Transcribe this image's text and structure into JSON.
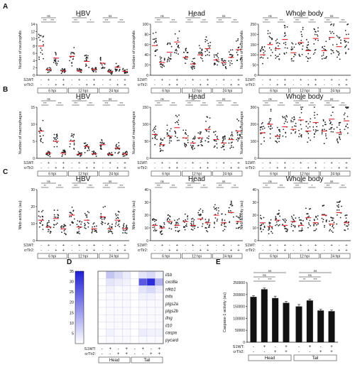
{
  "figure": {
    "factor_labels": [
      "S1WT:",
      "crTlr2:"
    ],
    "s1wt": [
      "-",
      "+",
      "-",
      "+"
    ],
    "crtlr2": [
      "-",
      "-",
      "+",
      "+"
    ],
    "timepoints": [
      "6 hpi",
      "12 hpi",
      "24 hpi"
    ],
    "colors": {
      "dot": "#222222",
      "mean": "#e0202a",
      "bar": "#111111",
      "heat_low": "#ffffff",
      "heat_high": "#1f1fd6"
    }
  },
  "chart_data": [
    {
      "id": "A1",
      "panel": "A",
      "type": "scatter",
      "title": "HBV",
      "ylabel": "Number of neutrophils",
      "ylim": [
        0,
        14
      ],
      "yticks": [
        0,
        2,
        4,
        6,
        8,
        10,
        12,
        14
      ],
      "groups": [
        "6 hpi",
        "12 hpi",
        "24 hpi"
      ],
      "means": [
        [
          8,
          1.5,
          4.7,
          1.2
        ],
        [
          5.2,
          1.2,
          3.8,
          1.6
        ],
        [
          3.3,
          1.0,
          2.2,
          1.1
        ]
      ],
      "sig": [
        [
          {
            "a": 0,
            "b": 1,
            "l": "***",
            "r": 0
          },
          {
            "a": 1,
            "b": 2,
            "l": "***",
            "r": 0
          },
          {
            "a": 0,
            "b": 2,
            "l": "ns",
            "r": 1
          }
        ],
        [
          {
            "a": 0,
            "b": 1,
            "l": "***",
            "r": 0
          },
          {
            "a": 2,
            "b": 3,
            "l": "*",
            "r": 0
          },
          {
            "a": 0,
            "b": 2,
            "l": "ns",
            "r": 1
          }
        ],
        [
          {
            "a": 0,
            "b": 1,
            "l": "***",
            "r": 0
          },
          {
            "a": 2,
            "b": 3,
            "l": "***",
            "r": 0
          },
          {
            "a": 0,
            "b": 2,
            "l": "ns",
            "r": 1
          }
        ]
      ]
    },
    {
      "id": "A2",
      "panel": "A",
      "type": "scatter",
      "title": "Head",
      "ylabel": "Number of neutrophils",
      "ylim": [
        0,
        100
      ],
      "yticks": [
        0,
        20,
        40,
        60,
        80,
        100
      ],
      "groups": [
        "6 hpi",
        "12 hpi",
        "24 hpi"
      ],
      "means": [
        [
          58,
          25,
          45,
          65
        ],
        [
          35,
          22,
          40,
          52
        ],
        [
          30,
          25,
          35,
          50
        ]
      ],
      "sig": [
        [
          {
            "a": 0,
            "b": 1,
            "l": "***",
            "r": 0
          },
          {
            "a": 2,
            "b": 3,
            "l": "***",
            "r": 0
          },
          {
            "a": 0,
            "b": 2,
            "l": "ns",
            "r": 1
          }
        ],
        [
          {
            "a": 0,
            "b": 1,
            "l": "***",
            "r": 0
          },
          {
            "a": 2,
            "b": 3,
            "l": "***",
            "r": 0
          },
          {
            "a": 0,
            "b": 2,
            "l": "ns",
            "r": 1
          }
        ],
        [
          {
            "a": 0,
            "b": 1,
            "l": "***",
            "r": 0
          },
          {
            "a": 2,
            "b": 3,
            "l": "***",
            "r": 0
          },
          {
            "a": 0,
            "b": 2,
            "l": "ns",
            "r": 1
          }
        ]
      ]
    },
    {
      "id": "A3",
      "panel": "A",
      "type": "scatter",
      "title": "Whole body",
      "ylabel": "Number of neutrophils",
      "ylim": [
        0,
        250
      ],
      "yticks": [
        0,
        50,
        100,
        150,
        200,
        250
      ],
      "groups": [
        "6 hpi",
        "12 hpi",
        "24 hpi"
      ],
      "means": [
        [
          100,
          150,
          130,
          175
        ],
        [
          110,
          160,
          120,
          180
        ],
        [
          120,
          185,
          140,
          180
        ]
      ],
      "sig": [
        [
          {
            "a": 0,
            "b": 1,
            "l": "***",
            "r": 0
          },
          {
            "a": 2,
            "b": 3,
            "l": "***",
            "r": 0
          },
          {
            "a": 0,
            "b": 2,
            "l": "ns",
            "r": 1
          }
        ],
        [
          {
            "a": 0,
            "b": 1,
            "l": "***",
            "r": 0
          },
          {
            "a": 2,
            "b": 3,
            "l": "***",
            "r": 0
          },
          {
            "a": 0,
            "b": 2,
            "l": "ns",
            "r": 1
          }
        ],
        [
          {
            "a": 0,
            "b": 1,
            "l": "***",
            "r": 0
          },
          {
            "a": 2,
            "b": 3,
            "l": "***",
            "r": 0
          },
          {
            "a": 0,
            "b": 2,
            "l": "ns",
            "r": 1
          }
        ]
      ]
    },
    {
      "id": "B1",
      "panel": "B",
      "type": "scatter",
      "title": "HBV",
      "ylabel": "Number of macrophages",
      "ylim": [
        0,
        15
      ],
      "yticks": [
        0,
        5,
        10,
        15
      ],
      "groups": [
        "6 hpi",
        "12 hpi",
        "24 hpi"
      ],
      "means": [
        [
          8,
          1.5,
          5,
          1.5
        ],
        [
          5,
          1.2,
          3.5,
          1.3
        ],
        [
          4,
          1.2,
          3,
          1.3
        ]
      ],
      "sig": [
        [
          {
            "a": 0,
            "b": 1,
            "l": "***",
            "r": 0
          },
          {
            "a": 2,
            "b": 3,
            "l": "***",
            "r": 0
          },
          {
            "a": 0,
            "b": 2,
            "l": "ns",
            "r": 1
          }
        ],
        [
          {
            "a": 0,
            "b": 1,
            "l": "***",
            "r": 0
          },
          {
            "a": 2,
            "b": 3,
            "l": "***",
            "r": 0
          },
          {
            "a": 0,
            "b": 2,
            "l": "ns",
            "r": 1
          }
        ],
        [
          {
            "a": 0,
            "b": 1,
            "l": "***",
            "r": 0
          },
          {
            "a": 2,
            "b": 3,
            "l": "***",
            "r": 0
          },
          {
            "a": 0,
            "b": 2,
            "l": "ns",
            "r": 1
          }
        ]
      ]
    },
    {
      "id": "B2",
      "panel": "B",
      "type": "scatter",
      "title": "Head",
      "ylabel": "Number of macrophages",
      "ylim": [
        0,
        150
      ],
      "yticks": [
        0,
        50,
        100,
        150
      ],
      "groups": [
        "6 hpi",
        "12 hpi",
        "24 hpi"
      ],
      "means": [
        [
          70,
          40,
          65,
          90
        ],
        [
          60,
          45,
          60,
          85
        ],
        [
          55,
          45,
          55,
          80
        ]
      ],
      "sig": [
        [
          {
            "a": 0,
            "b": 1,
            "l": "***",
            "r": 0
          },
          {
            "a": 2,
            "b": 3,
            "l": "***",
            "r": 0
          },
          {
            "a": 0,
            "b": 2,
            "l": "ns",
            "r": 1
          }
        ],
        [
          {
            "a": 0,
            "b": 1,
            "l": "***",
            "r": 0
          },
          {
            "a": 2,
            "b": 3,
            "l": "***",
            "r": 0
          },
          {
            "a": 0,
            "b": 2,
            "l": "ns",
            "r": 1
          }
        ],
        [
          {
            "a": 0,
            "b": 1,
            "l": "***",
            "r": 0
          },
          {
            "a": 2,
            "b": 3,
            "l": "***",
            "r": 0
          },
          {
            "a": 0,
            "b": 2,
            "l": "ns",
            "r": 1
          }
        ]
      ]
    },
    {
      "id": "B3",
      "panel": "B",
      "type": "scatter",
      "title": "Whole body",
      "ylabel": "Number of macrophages",
      "ylim": [
        0,
        300
      ],
      "yticks": [
        0,
        100,
        200,
        300
      ],
      "groups": [
        "6 hpi",
        "12 hpi",
        "24 hpi"
      ],
      "means": [
        [
          150,
          200,
          130,
          185
        ],
        [
          170,
          225,
          160,
          210
        ],
        [
          160,
          230,
          150,
          220
        ]
      ],
      "sig": [
        [
          {
            "a": 0,
            "b": 1,
            "l": "***",
            "r": 0
          },
          {
            "a": 2,
            "b": 3,
            "l": "***",
            "r": 0
          },
          {
            "a": 0,
            "b": 2,
            "l": "ns",
            "r": 1
          }
        ],
        [
          {
            "a": 0,
            "b": 1,
            "l": "***",
            "r": 0
          },
          {
            "a": 2,
            "b": 3,
            "l": "***",
            "r": 0
          },
          {
            "a": 0,
            "b": 2,
            "l": "ns",
            "r": 1
          }
        ],
        [
          {
            "a": 0,
            "b": 1,
            "l": "***",
            "r": 0
          },
          {
            "a": 2,
            "b": 3,
            "l": "***",
            "r": 0
          },
          {
            "a": 0,
            "b": 2,
            "l": "ns",
            "r": 1
          }
        ]
      ]
    },
    {
      "id": "C1",
      "panel": "C",
      "type": "scatter",
      "title": "HBV",
      "ylabel": "Nfκb activity (au)",
      "ylim": [
        0,
        30
      ],
      "yticks": [
        0,
        10,
        20,
        30
      ],
      "groups": [
        "6 hpi",
        "12 hpi",
        "24 hpi"
      ],
      "means": [
        [
          12,
          8,
          13,
          7
        ],
        [
          15,
          8,
          12,
          7
        ],
        [
          14,
          7,
          12,
          7
        ]
      ],
      "sig": [
        [
          {
            "a": 0,
            "b": 1,
            "l": "**",
            "r": 0
          },
          {
            "a": 2,
            "b": 3,
            "l": "***",
            "r": 0
          },
          {
            "a": 0,
            "b": 2,
            "l": "ns",
            "r": 1
          }
        ],
        [
          {
            "a": 0,
            "b": 1,
            "l": "***",
            "r": 0
          },
          {
            "a": 2,
            "b": 3,
            "l": "***",
            "r": 0
          },
          {
            "a": 0,
            "b": 2,
            "l": "ns",
            "r": 1
          }
        ],
        [
          {
            "a": 0,
            "b": 1,
            "l": "***",
            "r": 0
          },
          {
            "a": 2,
            "b": 3,
            "l": "***",
            "r": 0
          },
          {
            "a": 0,
            "b": 2,
            "l": "ns",
            "r": 1
          }
        ]
      ]
    },
    {
      "id": "C2",
      "panel": "C",
      "type": "scatter",
      "title": "Head",
      "ylabel": "Nfκb activity (au)",
      "ylim": [
        0,
        40
      ],
      "yticks": [
        0,
        10,
        20,
        30,
        40
      ],
      "groups": [
        "6 hpi",
        "12 hpi",
        "24 hpi"
      ],
      "means": [
        [
          12,
          10,
          15,
          12
        ],
        [
          15,
          12,
          17,
          14
        ],
        [
          20,
          14,
          22,
          15
        ]
      ],
      "sig": [
        [
          {
            "a": 0,
            "b": 1,
            "l": "***",
            "r": 0
          },
          {
            "a": 2,
            "b": 3,
            "l": "***",
            "r": 0
          },
          {
            "a": 0,
            "b": 2,
            "l": "ns",
            "r": 1
          }
        ],
        [
          {
            "a": 0,
            "b": 1,
            "l": "***",
            "r": 0
          },
          {
            "a": 2,
            "b": 3,
            "l": "**",
            "r": 0
          },
          {
            "a": 0,
            "b": 2,
            "l": "ns",
            "r": 1
          }
        ],
        [
          {
            "a": 0,
            "b": 1,
            "l": "***",
            "r": 0
          },
          {
            "a": 2,
            "b": 3,
            "l": "**",
            "r": 0
          },
          {
            "a": 0,
            "b": 2,
            "l": "ns",
            "r": 1
          }
        ]
      ]
    },
    {
      "id": "C3",
      "panel": "C",
      "type": "scatter",
      "title": "Whole body",
      "ylabel": "Nfκb activity (au)",
      "ylim": [
        0,
        40
      ],
      "yticks": [
        0,
        10,
        20,
        30,
        40
      ],
      "groups": [
        "6 hpi",
        "12 hpi",
        "24 hpi"
      ],
      "means": [
        [
          14,
          11,
          16,
          12
        ],
        [
          15,
          12,
          18,
          14
        ],
        [
          20,
          13,
          22,
          14
        ]
      ],
      "sig": [
        [
          {
            "a": 0,
            "b": 1,
            "l": "**",
            "r": 0
          },
          {
            "a": 2,
            "b": 3,
            "l": "***",
            "r": 0
          },
          {
            "a": 0,
            "b": 2,
            "l": "ns",
            "r": 1
          }
        ],
        [
          {
            "a": 0,
            "b": 1,
            "l": "***",
            "r": 0
          },
          {
            "a": 2,
            "b": 3,
            "l": "*",
            "r": 0
          },
          {
            "a": 0,
            "b": 2,
            "l": "ns",
            "r": 1
          }
        ],
        [
          {
            "a": 0,
            "b": 1,
            "l": "***",
            "r": 0
          },
          {
            "a": 2,
            "b": 3,
            "l": "***",
            "r": 0
          },
          {
            "a": 0,
            "b": 2,
            "l": "ns",
            "r": 1
          }
        ]
      ]
    },
    {
      "id": "D",
      "panel": "D",
      "type": "heatmap",
      "rows": [
        "il1b",
        "cxcl8a",
        "nfkb1",
        "tnfa",
        "ptgs2a",
        "ptgs2b",
        "ifng",
        "il10",
        "caspa",
        "pycard"
      ],
      "groups": [
        "Head",
        "Tail"
      ],
      "scale_ticks": [
        5,
        10,
        15,
        20,
        25,
        30,
        35
      ],
      "scale_range": [
        0,
        35
      ],
      "values": [
        [
          0,
          9,
          6,
          3,
          0,
          4,
          6,
          2
        ],
        [
          0,
          4,
          3,
          2,
          0,
          26,
          33,
          12
        ],
        [
          0,
          2,
          1,
          1,
          0,
          4,
          6,
          3
        ],
        [
          0,
          1,
          1,
          1,
          0,
          2,
          2,
          1
        ],
        [
          0,
          1,
          1,
          1,
          0,
          1,
          1,
          1
        ],
        [
          0,
          1,
          1,
          1,
          0,
          1,
          1,
          1
        ],
        [
          0,
          1,
          1,
          1,
          0,
          1,
          1,
          1
        ],
        [
          0,
          1,
          1,
          1,
          0,
          1,
          1,
          1
        ],
        [
          0,
          2,
          1,
          1,
          0,
          3,
          2,
          2
        ],
        [
          0,
          1,
          1,
          1,
          0,
          1,
          1,
          1
        ]
      ]
    },
    {
      "id": "E",
      "panel": "E",
      "type": "bar",
      "ylabel": "Caspase-1 activity (au)",
      "ylim": [
        0,
        250000
      ],
      "yticks": [
        0,
        50000,
        100000,
        150000,
        200000,
        250000
      ],
      "ytick_labels": [
        "0",
        "50000",
        "100000",
        "150000",
        "200000",
        "250000"
      ],
      "groups": [
        "Head",
        "Tail"
      ],
      "values": [
        [
          190000,
          222000,
          185000,
          165000
        ],
        [
          150000,
          175000,
          133000,
          130000
        ]
      ],
      "errors": [
        [
          5000,
          5000,
          8000,
          6000
        ],
        [
          8000,
          6000,
          5000,
          5000
        ]
      ],
      "sig": [
        [
          {
            "a": 0,
            "b": 1,
            "l": "*",
            "r": 0
          },
          {
            "a": 1,
            "b": 2,
            "l": "***",
            "r": 0
          },
          {
            "a": 0,
            "b": 2,
            "l": "ns",
            "r": 1
          },
          {
            "a": 0,
            "b": 3,
            "l": "ns",
            "r": 2
          }
        ],
        [
          {
            "a": 0,
            "b": 1,
            "l": "**",
            "r": 0
          },
          {
            "a": 1,
            "b": 2,
            "l": "***",
            "r": 0
          },
          {
            "a": 0,
            "b": 2,
            "l": "ns",
            "r": 1
          },
          {
            "a": 0,
            "b": 3,
            "l": "ns",
            "r": 2
          }
        ]
      ]
    }
  ]
}
